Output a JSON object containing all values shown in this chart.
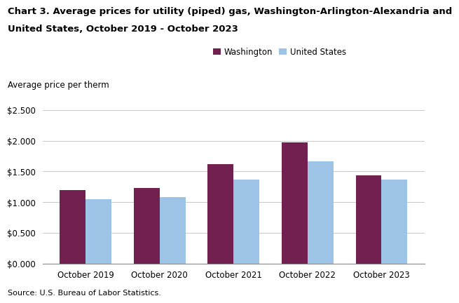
{
  "title_line1": "Chart 3. Average prices for utility (piped) gas, Washington-Arlington-Alexandria and",
  "title_line2": "United States, October 2019 - October 2023",
  "axis_label": "Average price per therm",
  "source": "Source: U.S. Bureau of Labor Statistics.",
  "categories": [
    "October 2019",
    "October 2020",
    "October 2021",
    "October 2022",
    "October 2023"
  ],
  "washington": [
    1.197,
    1.228,
    1.614,
    1.971,
    1.434
  ],
  "united_states": [
    1.047,
    1.082,
    1.363,
    1.66,
    1.369
  ],
  "washington_color": "#722050",
  "us_color": "#9DC3E6",
  "washington_label": "Washington",
  "us_label": "United States",
  "ylim": [
    0,
    2.5
  ],
  "yticks": [
    0.0,
    0.5,
    1.0,
    1.5,
    2.0,
    2.5
  ],
  "bar_width": 0.35,
  "background_color": "#ffffff",
  "grid_color": "#c8c8c8",
  "title_fontsize": 9.5,
  "axis_label_fontsize": 8.5,
  "tick_fontsize": 8.5,
  "legend_fontsize": 8.5,
  "source_fontsize": 8.0
}
